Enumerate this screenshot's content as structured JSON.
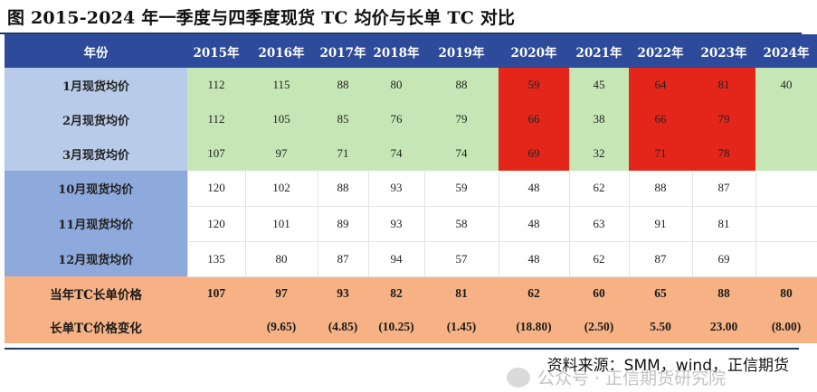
{
  "title": "图 2015-2024 年一季度与四季度现货 TC 均价与长单 TC 对比",
  "table": {
    "header_label": "年份",
    "years": [
      "2015年",
      "2016年",
      "2017年",
      "2018年",
      "2019年",
      "2020年",
      "2021年",
      "2022年",
      "2023年",
      "2024年"
    ],
    "rows": [
      {
        "label": "1月现货均价",
        "group": "q1",
        "values": [
          "112",
          "115",
          "88",
          "80",
          "88",
          "59",
          "45",
          "64",
          "81",
          "40"
        ],
        "highlight": [
          false,
          false,
          false,
          false,
          false,
          true,
          false,
          true,
          true,
          false
        ]
      },
      {
        "label": "2月现货均价",
        "group": "q1",
        "values": [
          "112",
          "105",
          "85",
          "76",
          "79",
          "66",
          "38",
          "66",
          "79",
          ""
        ],
        "highlight": [
          false,
          false,
          false,
          false,
          false,
          true,
          false,
          true,
          true,
          false
        ]
      },
      {
        "label": "3月现货均价",
        "group": "q1",
        "values": [
          "107",
          "97",
          "71",
          "74",
          "74",
          "69",
          "32",
          "71",
          "78",
          ""
        ],
        "highlight": [
          false,
          false,
          false,
          false,
          false,
          true,
          false,
          true,
          true,
          false
        ]
      },
      {
        "label": "10月现货均价",
        "group": "q4",
        "values": [
          "120",
          "102",
          "88",
          "93",
          "59",
          "48",
          "62",
          "88",
          "87",
          ""
        ]
      },
      {
        "label": "11月现货均价",
        "group": "q4",
        "values": [
          "120",
          "101",
          "89",
          "93",
          "58",
          "48",
          "63",
          "91",
          "81",
          ""
        ]
      },
      {
        "label": "12月现货均价",
        "group": "q4",
        "values": [
          "135",
          "80",
          "87",
          "94",
          "57",
          "48",
          "62",
          "87",
          "69",
          ""
        ]
      },
      {
        "label": "当年TC长单价格",
        "group": "contract",
        "values": [
          "107",
          "97",
          "93",
          "82",
          "81",
          "62",
          "60",
          "65",
          "88",
          "80"
        ]
      },
      {
        "label": "长单TC价格变化",
        "group": "change",
        "values": [
          "",
          "(9.65)",
          "(4.85)",
          "(10.25)",
          "(1.45)",
          "(18.80)",
          "(2.50)",
          "5.50",
          "23.00",
          "(8.00)"
        ]
      }
    ]
  },
  "source": "资料来源：SMM，wind，正信期货",
  "watermark": "公众号 · 正信期货研究院",
  "colors": {
    "header_bg": "#2e4a9a",
    "q1_label_bg": "#b8cbe9",
    "q4_label_bg": "#8ea9db",
    "q1_cell_bg": "#c6e7b5",
    "highlight_bg": "#e4261a",
    "contract_bg": "#f6b284",
    "negative_text": "#d00000"
  }
}
